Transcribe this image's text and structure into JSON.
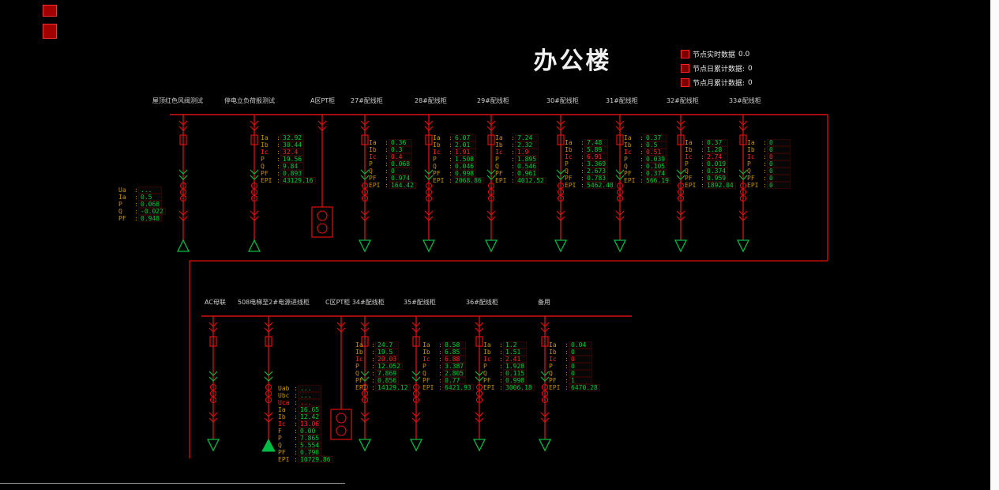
{
  "title": "办公楼",
  "node_stats": [
    {
      "label": "节点实时数据",
      "value": "0.0"
    },
    {
      "label": "节点日累计数据:",
      "value": "0"
    },
    {
      "label": "节点月累计数据:",
      "value": "0"
    }
  ],
  "colors": {
    "line": "#dc1010",
    "label": "#c79100",
    "value": "#00cc33",
    "alarm": "#ff2525",
    "symbol": "#00bb44",
    "feeder_name": "#cfcfcf",
    "title": "#f0f0f0"
  },
  "top_feeders": [
    {
      "id": "test-1",
      "name": "屋顶红色风阀测试",
      "meter": {
        "rows": [
          {
            "l": "Ua",
            "v": "..."
          },
          {
            "l": "Ia",
            "v": "0.5"
          },
          {
            "l": "P",
            "v": "0.068"
          },
          {
            "l": "Q",
            "v": "-0.022"
          },
          {
            "l": "PF",
            "v": "0.948"
          }
        ]
      }
    },
    {
      "id": "test-2",
      "name": "停电立负荷报测试",
      "meter": {
        "rows": [
          {
            "l": "Ia",
            "v": "32.92"
          },
          {
            "l": "Ib",
            "v": "30.44"
          },
          {
            "l": "Ic",
            "v": "32.4",
            "alarm": true
          },
          {
            "l": "P",
            "v": "19.56"
          },
          {
            "l": "Q",
            "v": "9.84"
          },
          {
            "l": "PF",
            "v": "0.893"
          },
          {
            "l": "EPI",
            "v": "43129.16"
          }
        ]
      }
    },
    {
      "id": "pt-a",
      "name": "A区PT柜"
    },
    {
      "id": "27",
      "name": "27#配线柜",
      "meter": {
        "rows": [
          {
            "l": "Ia",
            "v": "0.36"
          },
          {
            "l": "Ib",
            "v": "0.3"
          },
          {
            "l": "Ic",
            "v": "0.4",
            "alarm": true
          },
          {
            "l": "P",
            "v": "0.068"
          },
          {
            "l": "Q",
            "v": "0"
          },
          {
            "l": "PF",
            "v": "0.974"
          },
          {
            "l": "EPI",
            "v": "164.42"
          }
        ]
      }
    },
    {
      "id": "28",
      "name": "28#配线柜",
      "meter": {
        "rows": [
          {
            "l": "Ia",
            "v": "6.07"
          },
          {
            "l": "Ib",
            "v": "2.01"
          },
          {
            "l": "Ic",
            "v": "1.91",
            "alarm": true
          },
          {
            "l": "P",
            "v": "1.508"
          },
          {
            "l": "Q",
            "v": "0.046"
          },
          {
            "l": "PF",
            "v": "0.998"
          },
          {
            "l": "EPI",
            "v": "2068.86"
          }
        ]
      }
    },
    {
      "id": "29",
      "name": "29#配线柜",
      "meter": {
        "rows": [
          {
            "l": "Ia",
            "v": "7.24"
          },
          {
            "l": "Ib",
            "v": "2.32"
          },
          {
            "l": "Ic",
            "v": "1.9",
            "alarm": true
          },
          {
            "l": "P",
            "v": "1.895"
          },
          {
            "l": "Q",
            "v": "0.546"
          },
          {
            "l": "PF",
            "v": "0.961"
          },
          {
            "l": "EPI",
            "v": "4012.52"
          }
        ]
      }
    },
    {
      "id": "30",
      "name": "30#配线柜",
      "meter": {
        "rows": [
          {
            "l": "Ia",
            "v": "7.48"
          },
          {
            "l": "Ib",
            "v": "5.89"
          },
          {
            "l": "Ic",
            "v": "6.91",
            "alarm": true
          },
          {
            "l": "P",
            "v": "3.369"
          },
          {
            "l": "Q",
            "v": "2.673"
          },
          {
            "l": "PF",
            "v": "0.783"
          },
          {
            "l": "EPI",
            "v": "5462.48"
          }
        ]
      }
    },
    {
      "id": "31",
      "name": "31#配线柜",
      "meter": {
        "rows": [
          {
            "l": "Ia",
            "v": "0.37"
          },
          {
            "l": "Ib",
            "v": "0.5"
          },
          {
            "l": "Ic",
            "v": "0.51",
            "alarm": true
          },
          {
            "l": "P",
            "v": "0.039"
          },
          {
            "l": "Q",
            "v": "0.105"
          },
          {
            "l": "PF",
            "v": "0.374"
          },
          {
            "l": "EPI",
            "v": "566.19"
          }
        ]
      }
    },
    {
      "id": "32",
      "name": "32#配线柜",
      "meter": {
        "rows": [
          {
            "l": "Ia",
            "v": "0.37"
          },
          {
            "l": "Ib",
            "v": "1.28"
          },
          {
            "l": "Ic",
            "v": "2.74",
            "alarm": true
          },
          {
            "l": "P",
            "v": "0.019"
          },
          {
            "l": "Q",
            "v": "0.374"
          },
          {
            "l": "PF",
            "v": "0.959"
          },
          {
            "l": "EPI",
            "v": "1892.04"
          }
        ]
      }
    },
    {
      "id": "33",
      "name": "33#配线柜",
      "meter": {
        "rows": [
          {
            "l": "Ia",
            "v": "0"
          },
          {
            "l": "Ib",
            "v": "0"
          },
          {
            "l": "Ic",
            "v": "0",
            "alarm": true
          },
          {
            "l": "P",
            "v": "0"
          },
          {
            "l": "Q",
            "v": "0"
          },
          {
            "l": "PF",
            "v": "0"
          },
          {
            "l": "EPI",
            "v": "0"
          }
        ]
      }
    }
  ],
  "bottom_feeders": [
    {
      "id": "ac-tie",
      "name": "AC母联"
    },
    {
      "id": "elevator-508",
      "name": "508电梯至2#电源进线柜",
      "meter": {
        "rows": [
          {
            "l": "Uab",
            "v": "..."
          },
          {
            "l": "Ubc",
            "v": "..."
          },
          {
            "l": "Uca",
            "v": "...",
            "alarm": true
          },
          {
            "l": "Ia",
            "v": "16.65"
          },
          {
            "l": "Ib",
            "v": "12.42"
          },
          {
            "l": "Ic",
            "v": "13.06",
            "alarm": true
          },
          {
            "l": "F",
            "v": "0.00"
          },
          {
            "l": "P",
            "v": "7.865"
          },
          {
            "l": "Q",
            "v": "5.554"
          },
          {
            "l": "PF",
            "v": "0.798"
          },
          {
            "l": "EPI",
            "v": "10729.86"
          }
        ]
      }
    },
    {
      "id": "pt-c-34",
      "name": "C区PT柜 34#配线柜",
      "meter": {
        "rows": [
          {
            "l": "Ia",
            "v": "24.7"
          },
          {
            "l": "Ib",
            "v": "19.5"
          },
          {
            "l": "Ic",
            "v": "20.03",
            "alarm": true
          },
          {
            "l": "P",
            "v": "12.052"
          },
          {
            "l": "Q",
            "v": "7.869"
          },
          {
            "l": "PF",
            "v": "0.856"
          },
          {
            "l": "EPI",
            "v": "14129.12"
          }
        ]
      }
    },
    {
      "id": "35",
      "name": "35#配线柜",
      "meter": {
        "rows": [
          {
            "l": "Ia",
            "v": "8.58"
          },
          {
            "l": "Ib",
            "v": "6.85"
          },
          {
            "l": "Ic",
            "v": "6.88",
            "alarm": true
          },
          {
            "l": "P",
            "v": "3.387"
          },
          {
            "l": "Q",
            "v": "2.805"
          },
          {
            "l": "PF",
            "v": "0.77"
          },
          {
            "l": "EPI",
            "v": "6421.93"
          }
        ]
      }
    },
    {
      "id": "36",
      "name": "36#配线柜",
      "meter": {
        "rows": [
          {
            "l": "Ia",
            "v": "1.2"
          },
          {
            "l": "Ib",
            "v": "1.51"
          },
          {
            "l": "Ic",
            "v": "2.41",
            "alarm": true
          },
          {
            "l": "P",
            "v": "1.928"
          },
          {
            "l": "Q",
            "v": "0.115"
          },
          {
            "l": "PF",
            "v": "0.998"
          },
          {
            "l": "EPI",
            "v": "3006.18"
          }
        ]
      }
    },
    {
      "id": "spare",
      "name": "备用",
      "meter": {
        "rows": [
          {
            "l": "Ia",
            "v": "0.04"
          },
          {
            "l": "Ib",
            "v": "0"
          },
          {
            "l": "Ic",
            "v": "0",
            "alarm": true
          },
          {
            "l": "P",
            "v": "0"
          },
          {
            "l": "Q",
            "v": "0"
          },
          {
            "l": "PF",
            "v": "1"
          },
          {
            "l": "EPI",
            "v": "6470.28"
          }
        ]
      }
    }
  ]
}
